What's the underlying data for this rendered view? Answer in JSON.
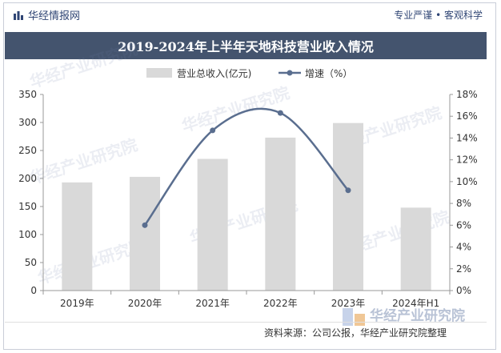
{
  "header": {
    "brand": "华经情报网",
    "slogan": "专业严谨 • 客观科学"
  },
  "chart_data": {
    "type": "bar",
    "title": "2019-2024年上半年天地科技营业收入情况",
    "categories": [
      "2019年",
      "2020年",
      "2021年",
      "2022年",
      "2023年",
      "2024年H1"
    ],
    "series": [
      {
        "name": "营业总收入(亿元)",
        "type": "bar",
        "axis": "left",
        "values": [
          193,
          203,
          235,
          273,
          299,
          148
        ],
        "color": "#d9d9d9"
      },
      {
        "name": "增速（%）",
        "type": "line",
        "axis": "right",
        "values": [
          null,
          6.0,
          14.7,
          16.3,
          9.2,
          null
        ],
        "color": "#5a6e8f"
      }
    ],
    "left_axis": {
      "min": 0,
      "max": 350,
      "step": 50,
      "ticks": [
        "0",
        "50",
        "100",
        "150",
        "200",
        "250",
        "300",
        "350"
      ]
    },
    "right_axis": {
      "min": 0,
      "max": 18,
      "step": 2,
      "ticks": [
        "0%",
        "2%",
        "4%",
        "6%",
        "8%",
        "10%",
        "12%",
        "14%",
        "16%",
        "18%"
      ]
    },
    "legend": "top-center",
    "grid": false
  },
  "footer": {
    "source": "资料来源：公司公报，华经产业研究院整理",
    "watermark": "华经产业研究院"
  }
}
